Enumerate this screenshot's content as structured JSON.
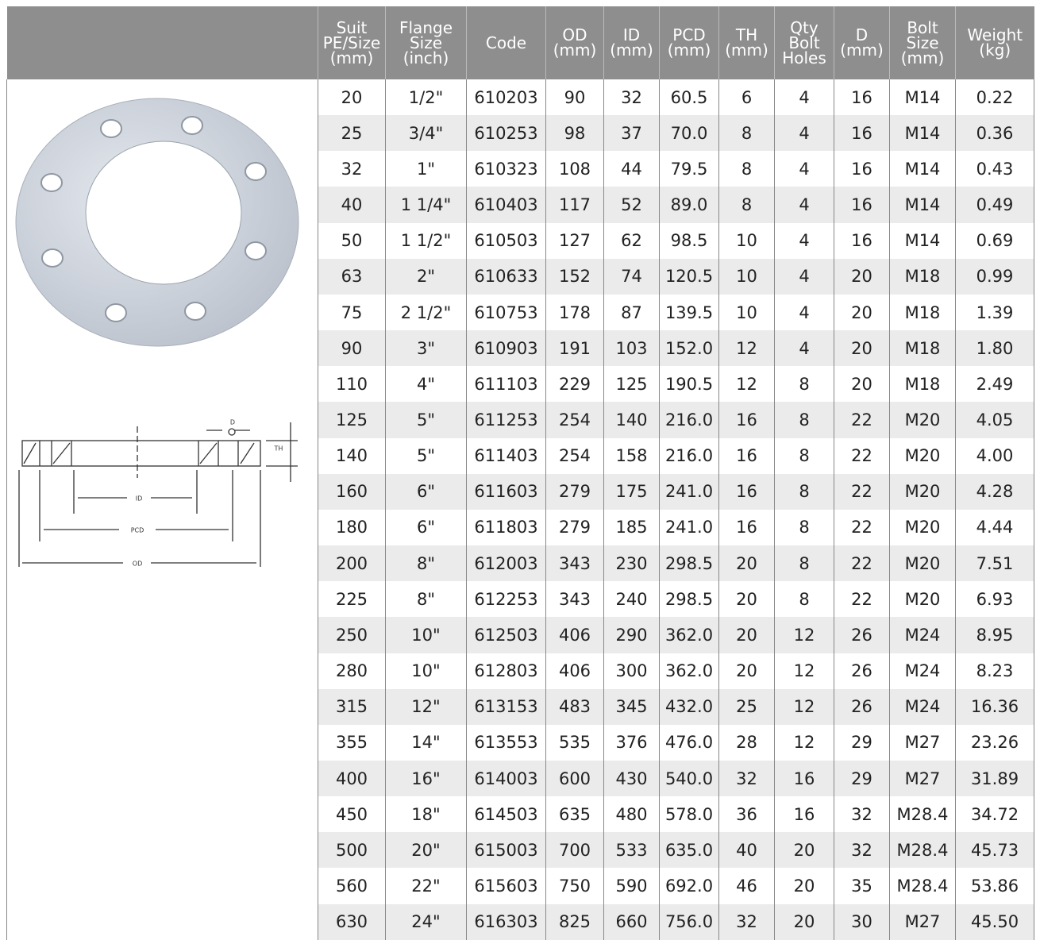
{
  "table": {
    "header": [
      [
        "Suit",
        "PE/Size",
        "(mm)"
      ],
      [
        "Flange",
        "Size",
        "(inch)"
      ],
      [
        "Code"
      ],
      [
        "OD",
        "(mm)"
      ],
      [
        "ID",
        "(mm)"
      ],
      [
        "PCD",
        "(mm)"
      ],
      [
        "TH",
        "(mm)"
      ],
      [
        "Qty",
        "Bolt",
        "Holes"
      ],
      [
        "D",
        "(mm)"
      ],
      [
        "Bolt",
        "Size",
        "(mm)"
      ],
      [
        "Weight",
        "(kg)"
      ]
    ],
    "rows": [
      [
        "20",
        "1/2\"",
        "610203",
        "90",
        "32",
        "60.5",
        "6",
        "4",
        "16",
        "M14",
        "0.22"
      ],
      [
        "25",
        "3/4\"",
        "610253",
        "98",
        "37",
        "70.0",
        "8",
        "4",
        "16",
        "M14",
        "0.36"
      ],
      [
        "32",
        "1\"",
        "610323",
        "108",
        "44",
        "79.5",
        "8",
        "4",
        "16",
        "M14",
        "0.43"
      ],
      [
        "40",
        "1 1/4\"",
        "610403",
        "117",
        "52",
        "89.0",
        "8",
        "4",
        "16",
        "M14",
        "0.49"
      ],
      [
        "50",
        "1 1/2\"",
        "610503",
        "127",
        "62",
        "98.5",
        "10",
        "4",
        "16",
        "M14",
        "0.69"
      ],
      [
        "63",
        "2\"",
        "610633",
        "152",
        "74",
        "120.5",
        "10",
        "4",
        "20",
        "M18",
        "0.99"
      ],
      [
        "75",
        "2 1/2\"",
        "610753",
        "178",
        "87",
        "139.5",
        "10",
        "4",
        "20",
        "M18",
        "1.39"
      ],
      [
        "90",
        "3\"",
        "610903",
        "191",
        "103",
        "152.0",
        "12",
        "4",
        "20",
        "M18",
        "1.80"
      ],
      [
        "110",
        "4\"",
        "611103",
        "229",
        "125",
        "190.5",
        "12",
        "8",
        "20",
        "M18",
        "2.49"
      ],
      [
        "125",
        "5\"",
        "611253",
        "254",
        "140",
        "216.0",
        "16",
        "8",
        "22",
        "M20",
        "4.05"
      ],
      [
        "140",
        "5\"",
        "611403",
        "254",
        "158",
        "216.0",
        "16",
        "8",
        "22",
        "M20",
        "4.00"
      ],
      [
        "160",
        "6\"",
        "611603",
        "279",
        "175",
        "241.0",
        "16",
        "8",
        "22",
        "M20",
        "4.28"
      ],
      [
        "180",
        "6\"",
        "611803",
        "279",
        "185",
        "241.0",
        "16",
        "8",
        "22",
        "M20",
        "4.44"
      ],
      [
        "200",
        "8\"",
        "612003",
        "343",
        "230",
        "298.5",
        "20",
        "8",
        "22",
        "M20",
        "7.51"
      ],
      [
        "225",
        "8\"",
        "612253",
        "343",
        "240",
        "298.5",
        "20",
        "8",
        "22",
        "M20",
        "6.93"
      ],
      [
        "250",
        "10\"",
        "612503",
        "406",
        "290",
        "362.0",
        "20",
        "12",
        "26",
        "M24",
        "8.95"
      ],
      [
        "280",
        "10\"",
        "612803",
        "406",
        "300",
        "362.0",
        "20",
        "12",
        "26",
        "M24",
        "8.23"
      ],
      [
        "315",
        "12\"",
        "613153",
        "483",
        "345",
        "432.0",
        "25",
        "12",
        "26",
        "M24",
        "16.36"
      ],
      [
        "355",
        "14\"",
        "613553",
        "535",
        "376",
        "476.0",
        "28",
        "12",
        "29",
        "M27",
        "23.26"
      ],
      [
        "400",
        "16\"",
        "614003",
        "600",
        "430",
        "540.0",
        "32",
        "16",
        "29",
        "M27",
        "31.89"
      ],
      [
        "450",
        "18\"",
        "614503",
        "635",
        "480",
        "578.0",
        "36",
        "16",
        "32",
        "M28.4",
        "34.72"
      ],
      [
        "500",
        "20\"",
        "615003",
        "700",
        "533",
        "635.0",
        "40",
        "20",
        "32",
        "M28.4",
        "45.73"
      ],
      [
        "560",
        "22\"",
        "615603",
        "750",
        "590",
        "692.0",
        "46",
        "20",
        "35",
        "M28.4",
        "53.86"
      ],
      [
        "630",
        "24\"",
        "616303",
        "825",
        "660",
        "756.0",
        "32",
        "20",
        "30",
        "M27",
        "45.50"
      ]
    ]
  },
  "diagram": {
    "labels": [
      "ID",
      "PCD",
      "OD",
      "TH",
      "D"
    ]
  }
}
